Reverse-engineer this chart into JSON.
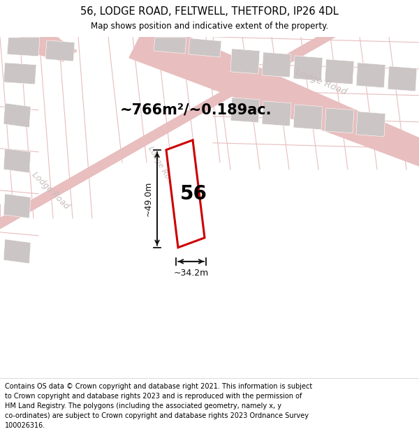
{
  "title": "56, LODGE ROAD, FELTWELL, THETFORD, IP26 4DL",
  "subtitle": "Map shows position and indicative extent of the property.",
  "footer_lines": [
    "Contains OS data © Crown copyright and database right 2021. This information is subject",
    "to Crown copyright and database rights 2023 and is reproduced with the permission of",
    "HM Land Registry. The polygons (including the associated geometry, namely x, y",
    "co-ordinates) are subject to Crown copyright and database rights 2023 Ordnance Survey",
    "100026316."
  ],
  "area_label": "~766m²/~0.189ac.",
  "number_label": "56",
  "dim_width": "~34.2m",
  "dim_height": "~49.0m",
  "map_bg": "#f2eeee",
  "road_color": "#e8bebe",
  "building_fill": "#ccc5c5",
  "plot_outline_color": "#cc0000",
  "plot_fill": "#ffffff",
  "dim_color": "#111111",
  "road_label_color": "#c8bcbc",
  "title_fontsize": 10.5,
  "subtitle_fontsize": 8.5,
  "footer_fontsize": 7.0,
  "area_fontsize": 15,
  "number_fontsize": 20,
  "dim_fontsize": 9
}
